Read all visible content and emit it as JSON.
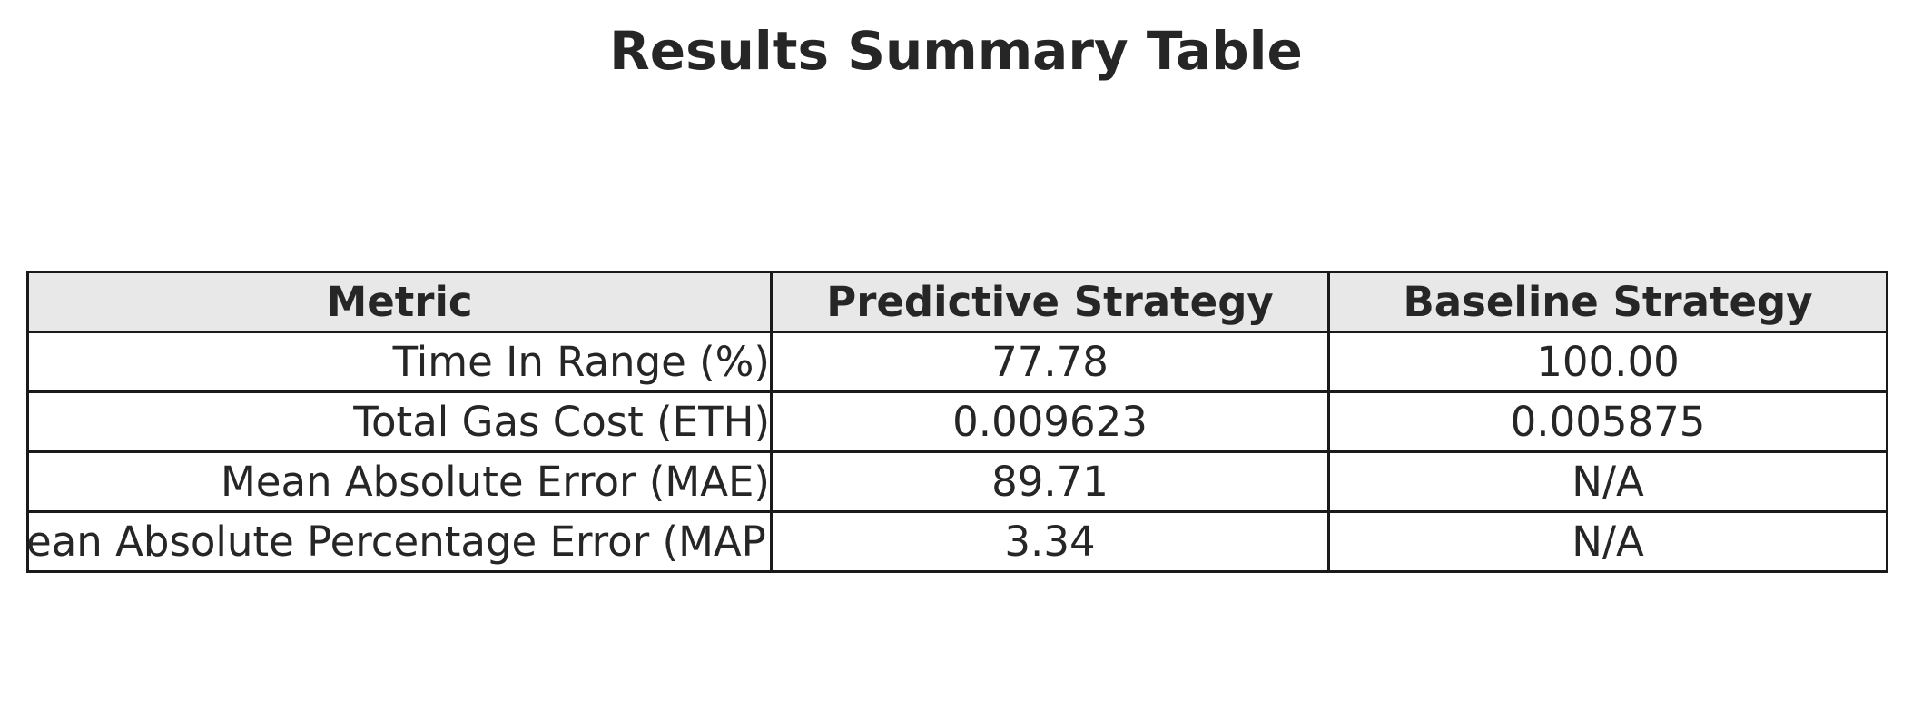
{
  "chart_data": {
    "type": "table",
    "title": "Results Summary Table",
    "columns": [
      "Metric",
      "Predictive Strategy",
      "Baseline Strategy"
    ],
    "rows": [
      [
        "Time In Range (%)",
        "77.78",
        "100.00"
      ],
      [
        "Total Gas Cost (ETH)",
        "0.009623",
        "0.005875"
      ],
      [
        "Mean Absolute Error (MAE)",
        "89.71",
        "N/A"
      ],
      [
        "Mean Absolute Percentage Error (MAPE)",
        "3.34",
        "N/A"
      ]
    ],
    "colors": {
      "header_background": "#e8e8e8",
      "border": "#1a1a1a",
      "text": "#262626"
    }
  }
}
